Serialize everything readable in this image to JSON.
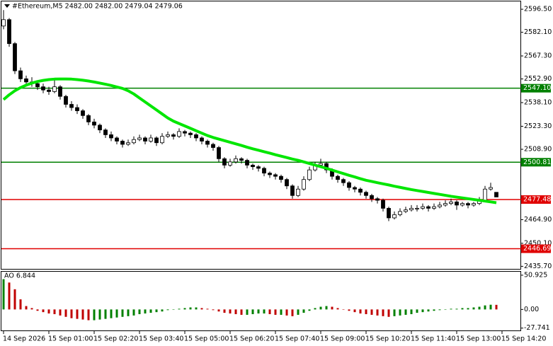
{
  "chart_data": {
    "type": "candlestick",
    "title": "#Ethereum,M5  2482.00 2482.00 2479.04 2479.06",
    "ohlc": [
      [
        2586,
        2596,
        2584,
        2590
      ],
      [
        2590,
        2591,
        2573,
        2575
      ],
      [
        2575,
        2576,
        2556,
        2558
      ],
      [
        2558,
        2560,
        2551,
        2553
      ],
      [
        2553,
        2555,
        2549,
        2551
      ],
      [
        2551,
        2554,
        2548,
        2550
      ],
      [
        2550,
        2552,
        2546,
        2548
      ],
      [
        2548,
        2550,
        2544,
        2546
      ],
      [
        2546,
        2548,
        2543,
        2545
      ],
      [
        2545,
        2553,
        2544,
        2548
      ],
      [
        2548,
        2549,
        2540,
        2542
      ],
      [
        2542,
        2543,
        2535,
        2537
      ],
      [
        2537,
        2539,
        2533,
        2535
      ],
      [
        2535,
        2537,
        2531,
        2533
      ],
      [
        2533,
        2534,
        2528,
        2530
      ],
      [
        2530,
        2531,
        2524,
        2526
      ],
      [
        2526,
        2528,
        2522,
        2524
      ],
      [
        2524,
        2525,
        2519,
        2521
      ],
      [
        2521,
        2522,
        2516,
        2518
      ],
      [
        2518,
        2520,
        2514,
        2516
      ],
      [
        2516,
        2517,
        2512,
        2514
      ],
      [
        2514,
        2515,
        2510,
        2512
      ],
      [
        2512,
        2515,
        2511,
        2513
      ],
      [
        2513,
        2517,
        2512,
        2515
      ],
      [
        2515,
        2518,
        2514,
        2516
      ],
      [
        2516,
        2517,
        2512,
        2514
      ],
      [
        2514,
        2518,
        2513,
        2516
      ],
      [
        2516,
        2517,
        2511,
        2513
      ],
      [
        2513,
        2519,
        2512,
        2517
      ],
      [
        2517,
        2520,
        2516,
        2518
      ],
      [
        2518,
        2519,
        2515,
        2517
      ],
      [
        2517,
        2522,
        2516,
        2520
      ],
      [
        2520,
        2521,
        2517,
        2519
      ],
      [
        2519,
        2520,
        2516,
        2518
      ],
      [
        2518,
        2519,
        2514,
        2516
      ],
      [
        2516,
        2517,
        2512,
        2514
      ],
      [
        2514,
        2515,
        2510,
        2512
      ],
      [
        2512,
        2513,
        2508,
        2510
      ],
      [
        2510,
        2511,
        2501,
        2503
      ],
      [
        2503,
        2504,
        2497,
        2499
      ],
      [
        2499,
        2503,
        2498,
        2501
      ],
      [
        2501,
        2505,
        2500,
        2503
      ],
      [
        2503,
        2504,
        2500,
        2502
      ],
      [
        2502,
        2503,
        2497,
        2499
      ],
      [
        2499,
        2500,
        2496,
        2498
      ],
      [
        2498,
        2499,
        2495,
        2497
      ],
      [
        2497,
        2498,
        2492,
        2494
      ],
      [
        2494,
        2495,
        2491,
        2493
      ],
      [
        2493,
        2494,
        2490,
        2492
      ],
      [
        2492,
        2493,
        2488,
        2490
      ],
      [
        2490,
        2491,
        2484,
        2486
      ],
      [
        2486,
        2487,
        2478,
        2480
      ],
      [
        2480,
        2486,
        2479,
        2484
      ],
      [
        2484,
        2492,
        2483,
        2490
      ],
      [
        2490,
        2498,
        2489,
        2496
      ],
      [
        2496,
        2501,
        2495,
        2499
      ],
      [
        2499,
        2503,
        2498,
        2500
      ],
      [
        2500,
        2501,
        2494,
        2496
      ],
      [
        2496,
        2497,
        2490,
        2492
      ],
      [
        2492,
        2493,
        2488,
        2490
      ],
      [
        2490,
        2491,
        2486,
        2488
      ],
      [
        2488,
        2489,
        2483,
        2485
      ],
      [
        2485,
        2486,
        2482,
        2484
      ],
      [
        2484,
        2485,
        2480,
        2482
      ],
      [
        2482,
        2483,
        2478,
        2480
      ],
      [
        2480,
        2481,
        2476,
        2478
      ],
      [
        2478,
        2479,
        2475,
        2477
      ],
      [
        2477,
        2478,
        2470,
        2472
      ],
      [
        2472,
        2473,
        2464,
        2466
      ],
      [
        2466,
        2470,
        2465,
        2468
      ],
      [
        2468,
        2472,
        2467,
        2470
      ],
      [
        2470,
        2473,
        2469,
        2471
      ],
      [
        2471,
        2474,
        2470,
        2472
      ],
      [
        2472,
        2474,
        2470,
        2472
      ],
      [
        2472,
        2475,
        2471,
        2473
      ],
      [
        2473,
        2474,
        2470,
        2472
      ],
      [
        2472,
        2475,
        2471,
        2473
      ],
      [
        2473,
        2476,
        2472,
        2474
      ],
      [
        2474,
        2477,
        2473,
        2475
      ],
      [
        2475,
        2478,
        2474,
        2476
      ],
      [
        2476,
        2477,
        2471,
        2474
      ],
      [
        2474,
        2476,
        2473,
        2475
      ],
      [
        2475,
        2476,
        2472,
        2474
      ],
      [
        2474,
        2476,
        2473,
        2475
      ],
      [
        2475,
        2479,
        2474,
        2477
      ],
      [
        2477,
        2486,
        2476,
        2484
      ],
      [
        2484,
        2488,
        2483,
        2485
      ],
      [
        2482,
        2482,
        2479.04,
        2479.06
      ]
    ],
    "candle_colors": {
      "up": "#ffffff",
      "down": "#000000",
      "edge": "#000000"
    },
    "ylim": [
      2434.1,
      2601.4
    ],
    "yticks": [
      {
        "value": 2596.5,
        "label": "2596.50"
      },
      {
        "value": 2582.1,
        "label": "2582.10"
      },
      {
        "value": 2567.3,
        "label": "2567.30"
      },
      {
        "value": 2552.9,
        "label": "2552.90"
      },
      {
        "value": 2538.1,
        "label": "2538.10"
      },
      {
        "value": 2523.3,
        "label": "2523.30"
      },
      {
        "value": 2508.9,
        "label": "2508.90"
      },
      {
        "value": 2464.9,
        "label": "2464.90"
      },
      {
        "value": 2450.1,
        "label": "2450.10"
      },
      {
        "value": 2435.7,
        "label": "2435.70"
      }
    ],
    "levels": [
      {
        "value": 2547.1,
        "label": "2547.10",
        "color": "#008000"
      },
      {
        "value": 2500.81,
        "label": "2500.81",
        "color": "#008000"
      },
      {
        "value": 2477.48,
        "label": "2477.48",
        "color": "#e00000"
      },
      {
        "value": 2446.69,
        "label": "2446.69",
        "color": "#e00000"
      }
    ],
    "ma": {
      "color": "#00e600",
      "values": [
        2540,
        2543,
        2545.5,
        2547.5,
        2549,
        2550.3,
        2551.3,
        2552,
        2552.5,
        2552.8,
        2552.9,
        2552.9,
        2552.8,
        2552.5,
        2552.1,
        2551.6,
        2551,
        2550.3,
        2549.6,
        2548.8,
        2547.9,
        2547,
        2545.5,
        2543.5,
        2541,
        2538.5,
        2536,
        2533.5,
        2531,
        2528.5,
        2526.5,
        2525,
        2523.5,
        2522,
        2520.5,
        2519,
        2517.5,
        2516.3,
        2515.3,
        2514.3,
        2513.3,
        2512.3,
        2511.3,
        2510.2,
        2509.2,
        2508.3,
        2507.4,
        2506.5,
        2505.5,
        2504.6,
        2503.7,
        2502.8,
        2502,
        2501,
        2500,
        2499,
        2498,
        2497,
        2495.9,
        2494.8,
        2493.7,
        2492.6,
        2491.6,
        2490.5,
        2489.5,
        2488.8,
        2488,
        2487.3,
        2486.6,
        2485.8,
        2485.1,
        2484.4,
        2483.7,
        2483.1,
        2482.5,
        2481.9,
        2481.3,
        2480.7,
        2480.1,
        2479.5,
        2479,
        2478.5,
        2478,
        2477.5,
        2477,
        2476.5,
        2476,
        2475.5
      ]
    },
    "ao": {
      "label": "AO 6.844",
      "up_color": "#008000",
      "down_color": "#c00000",
      "values": [
        45,
        40,
        30,
        15,
        5,
        2,
        -2,
        -4,
        -6,
        -7,
        -9,
        -11,
        -13,
        -14,
        -15,
        -16,
        -16,
        -15,
        -14,
        -13,
        -12,
        -11,
        -10,
        -9,
        -7,
        -6,
        -5,
        -4,
        -3,
        -1,
        0,
        1,
        2,
        3,
        3,
        2,
        1,
        -1,
        -3,
        -5,
        -6,
        -7,
        -8,
        -8,
        -7,
        -6,
        -6,
        -7,
        -8,
        -8,
        -9,
        -10,
        -8,
        -5,
        -2,
        2,
        4,
        5,
        4,
        2,
        0,
        -2,
        -4,
        -6,
        -7,
        -8,
        -9,
        -10,
        -11,
        -10,
        -9,
        -8,
        -7,
        -5,
        -4,
        -3,
        -2,
        -1,
        0,
        1,
        1,
        2,
        2,
        3,
        4,
        6,
        7,
        6.844
      ],
      "y2lim": [
        -31.2,
        56.1
      ],
      "y2ticks": [
        50.925,
        {
          "value": 0,
          "label": "0.00"
        },
        -27.741
      ]
    },
    "x_labels": [
      "14 Sep 2026",
      "15 Sep 01:00",
      "15 Sep 02:20",
      "15 Sep 03:40",
      "15 Sep 05:00",
      "15 Sep 06:20",
      "15 Sep 07:40",
      "15 Sep 09:00",
      "15 Sep 10:20",
      "15 Sep 11:40",
      "15 Sep 13:00",
      "15 Sep 14:20"
    ]
  }
}
